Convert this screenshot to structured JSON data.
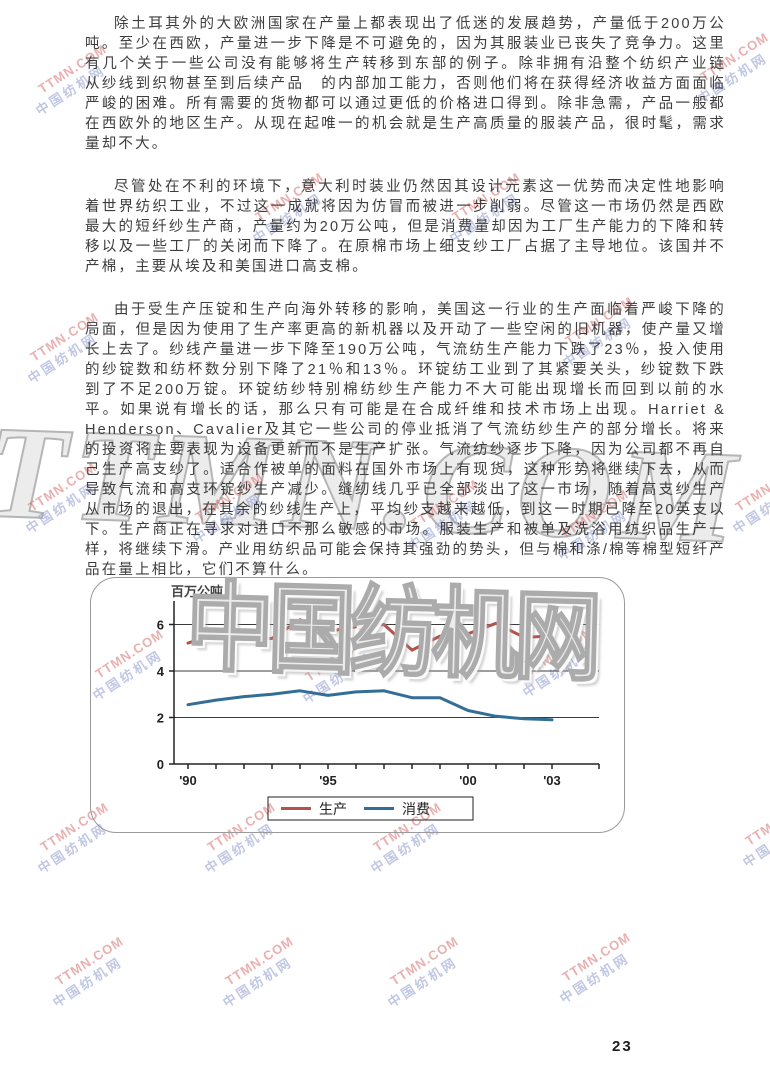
{
  "page": {
    "number": "23"
  },
  "paragraphs": [
    {
      "text": "除土耳其外的大欧洲国家在产量上都表现出了低迷的发展趋势，产量低于200万公吨。至少在西欧，产量进一步下降是不可避免的，因为其服装业已丧失了竞争力。这里有几个关于一些公司没有能够将生产转移到东部的例子。除非拥有沿整个纺织产业链　从纱线到织物甚至到后续产品　的内部加工能力，否则他们将在获得经济收益方面面临严峻的困难。所有需要的货物都可以通过更低的价格进口得到。除非急需，产品一般都在西欧外的地区生产。从现在起唯一的机会就是生产高质量的服装产品，很时髦，需求量却不大。"
    },
    {
      "text": "尽管处在不利的环境下，意大利时装业仍然因其设计元素这一优势而决定性地影响着世界纺织工业，不过这一成就将因为仿冒而被进一步削弱。尽管这一市场仍然是西欧最大的短纤纱生产商，产量约为20万公吨，但是消费量却因为工厂生产能力的下降和转移以及一些工厂的关闭而下降了。在原棉市场上细支纱工厂占据了主导地位。该国并不产棉，主要从埃及和美国进口高支棉。"
    },
    {
      "text": "由于受生产压锭和生产向海外转移的影响，美国这一行业的生产面临着严峻下降的局面，但是因为使用了生产率更高的新机器以及开动了一些空闲的旧机器，使产量又增长上去了。纱线产量进一步下降至190万公吨，气流纺生产能力下跌了23％，投入使用的纱锭数和纺杯数分别下降了21％和13％。环锭纺工业到了其紧要关头，纱锭数下跌到了不足200万锭。环锭纺纱特别棉纺纱生产能力不大可能出现增长而回到以前的水平。如果说有增长的话，那么只有可能是在合成纤维和技术市场上出现。Harriet & Henderson、Cavalier及其它一些公司的停业抵消了气流纺纱生产的部分增长。将来的投资将主要表现为设备更新而不是生产扩张。气流纺纱逐步下降，因为公司都不再自己生产高支纱了。适合作被单的面料在国外市场上有现货，这种形势将继续下去，从而导致气流和高支环锭纱生产减少。缝纫线几乎已全部淡出了这一市场，随着高支纱生产从市场的退出，在其余的纱线生产上，平均纱支越来越低，到这一时期已降至20英支以下。生产商正在寻求对进口不那么敏感的市场。服装生产和被单及洗浴用纺织品生产一样，将继续下滑。产业用纺织品可能会保持其强劲的势头，但与棉和涤/棉等棉型短纤产品在量上相比，它们不算什么。"
    }
  ],
  "watermark": {
    "site_en": "TTMN.COM",
    "site_cn": "中国纺机网",
    "small_color_en": "#d96f6f",
    "small_color_cn": "#8f9ace",
    "big_fill": "#ececec"
  },
  "chart_data": {
    "type": "line",
    "unit_label": "百万公吨",
    "x": [
      1990,
      1991,
      1992,
      1993,
      1994,
      1995,
      1996,
      1997,
      1998,
      1999,
      2000,
      2001,
      2002,
      2003
    ],
    "x_tick_labels": [
      "'90",
      "'95",
      "'00",
      "'03"
    ],
    "x_tick_years": [
      1990,
      1995,
      2000,
      2003
    ],
    "series": [
      {
        "name": "生产",
        "color": "#b2544c",
        "values": [
          5.2,
          5.6,
          5.35,
          5.4,
          6.2,
          5.7,
          5.9,
          6.0,
          4.9,
          5.5,
          5.6,
          6.05,
          5.45,
          5.5
        ]
      },
      {
        "name": "消费",
        "color": "#336e96",
        "values": [
          2.55,
          2.75,
          2.9,
          3.0,
          3.15,
          2.95,
          3.1,
          3.15,
          2.85,
          2.85,
          2.3,
          2.05,
          1.95,
          1.9
        ]
      }
    ],
    "ylim": [
      0,
      7
    ],
    "yticks": [
      0,
      2,
      4,
      6
    ],
    "grid": true,
    "legend_position": "bottom"
  }
}
